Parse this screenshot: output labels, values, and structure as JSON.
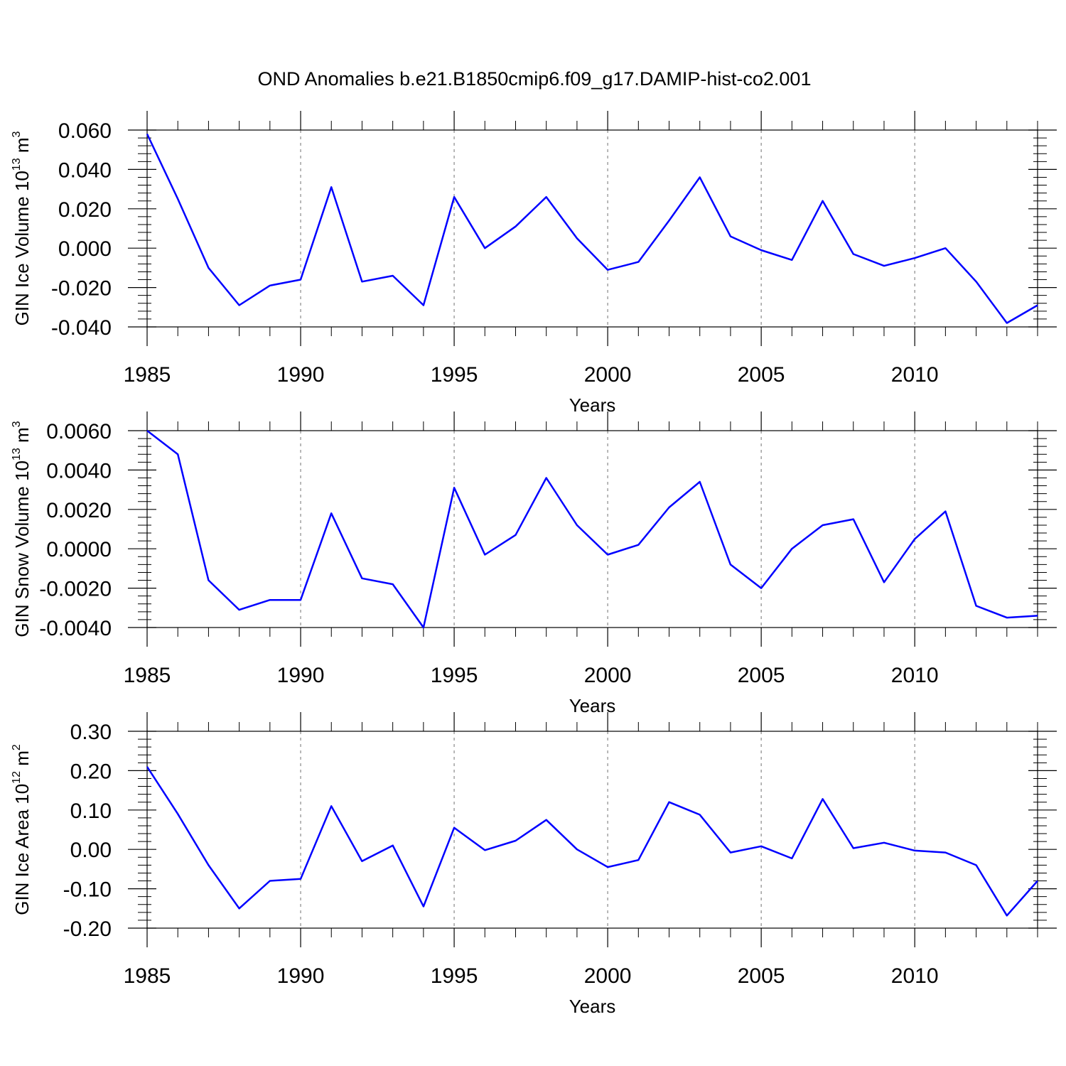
{
  "title": "OND Anomalies b.e21.B1850cmip6.f09_g17.DAMIP-hist-co2.001",
  "colors": {
    "series": "#0000ff",
    "grid": "#888888"
  },
  "chart_data": [
    {
      "type": "line",
      "title": "",
      "xlabel": "Years",
      "ylabel_main": "GIN Ice Volume 10",
      "ylabel_exp": "13",
      "ylabel_unit": " m",
      "ylabel_unit_exp": "3",
      "xlim": [
        1985,
        2014
      ],
      "ylim": [
        -0.04,
        0.06
      ],
      "xticks": [
        "1985",
        "1990",
        "1995",
        "2000",
        "2005",
        "2010"
      ],
      "yticks": [
        "-0.040",
        "-0.020",
        "0.000",
        "0.020",
        "0.040",
        "0.060"
      ],
      "grid": "vertical dashed at major x ticks",
      "x": [
        1985,
        1986,
        1987,
        1988,
        1989,
        1990,
        1991,
        1992,
        1993,
        1994,
        1995,
        1996,
        1997,
        1998,
        1999,
        2000,
        2001,
        2002,
        2003,
        2004,
        2005,
        2006,
        2007,
        2008,
        2009,
        2010,
        2011,
        2012,
        2013,
        2014
      ],
      "values": [
        0.058,
        0.025,
        -0.01,
        -0.029,
        -0.019,
        -0.016,
        0.031,
        -0.017,
        -0.014,
        -0.029,
        0.026,
        0.0,
        0.011,
        0.026,
        0.005,
        -0.011,
        -0.007,
        0.014,
        0.036,
        0.006,
        -0.001,
        -0.006,
        0.024,
        -0.003,
        -0.009,
        -0.005,
        0.0,
        -0.017,
        -0.038,
        -0.029
      ]
    },
    {
      "type": "line",
      "title": "",
      "xlabel": "Years",
      "ylabel_main": "GIN Snow Volume 10",
      "ylabel_exp": "13",
      "ylabel_unit": " m",
      "ylabel_unit_exp": "3",
      "xlim": [
        1985,
        2014
      ],
      "ylim": [
        -0.004,
        0.006
      ],
      "xticks": [
        "1985",
        "1990",
        "1995",
        "2000",
        "2005",
        "2010"
      ],
      "yticks": [
        "-0.0040",
        "-0.0020",
        "0.0000",
        "0.0020",
        "0.0040",
        "0.0060"
      ],
      "grid": "vertical dashed at major x ticks",
      "x": [
        1985,
        1986,
        1987,
        1988,
        1989,
        1990,
        1991,
        1992,
        1993,
        1994,
        1995,
        1996,
        1997,
        1998,
        1999,
        2000,
        2001,
        2002,
        2003,
        2004,
        2005,
        2006,
        2007,
        2008,
        2009,
        2010,
        2011,
        2012,
        2013,
        2014
      ],
      "values": [
        0.006,
        0.0048,
        -0.0016,
        -0.0031,
        -0.0026,
        -0.0026,
        0.0018,
        -0.0015,
        -0.0018,
        -0.004,
        0.0031,
        -0.0003,
        0.0007,
        0.0036,
        0.0012,
        -0.0003,
        0.0002,
        0.0021,
        0.0034,
        -0.0008,
        -0.002,
        0.0,
        0.0012,
        0.0015,
        -0.0017,
        0.0005,
        0.0019,
        -0.0029,
        -0.0035,
        -0.0034
      ]
    },
    {
      "type": "line",
      "title": "",
      "xlabel": "Years",
      "ylabel_main": "GIN Ice Area 10",
      "ylabel_exp": "12",
      "ylabel_unit": " m",
      "ylabel_unit_exp": "2",
      "xlim": [
        1985,
        2014
      ],
      "ylim": [
        -0.2,
        0.3
      ],
      "xticks": [
        "1985",
        "1990",
        "1995",
        "2000",
        "2005",
        "2010"
      ],
      "yticks": [
        "-0.20",
        "-0.10",
        "0.00",
        "0.10",
        "0.20",
        "0.30"
      ],
      "grid": "vertical dashed at major x ticks",
      "x": [
        1985,
        1986,
        1987,
        1988,
        1989,
        1990,
        1991,
        1992,
        1993,
        1994,
        1995,
        1996,
        1997,
        1998,
        1999,
        2000,
        2001,
        2002,
        2003,
        2004,
        2005,
        2006,
        2007,
        2008,
        2009,
        2010,
        2011,
        2012,
        2013,
        2014
      ],
      "values": [
        0.21,
        0.09,
        -0.04,
        -0.15,
        -0.08,
        -0.075,
        0.11,
        -0.03,
        0.01,
        -0.145,
        0.055,
        -0.002,
        0.022,
        0.075,
        0.0,
        -0.045,
        -0.027,
        0.12,
        0.088,
        -0.008,
        0.008,
        -0.023,
        0.128,
        0.003,
        0.017,
        -0.003,
        -0.008,
        -0.04,
        -0.168,
        -0.08
      ]
    }
  ]
}
